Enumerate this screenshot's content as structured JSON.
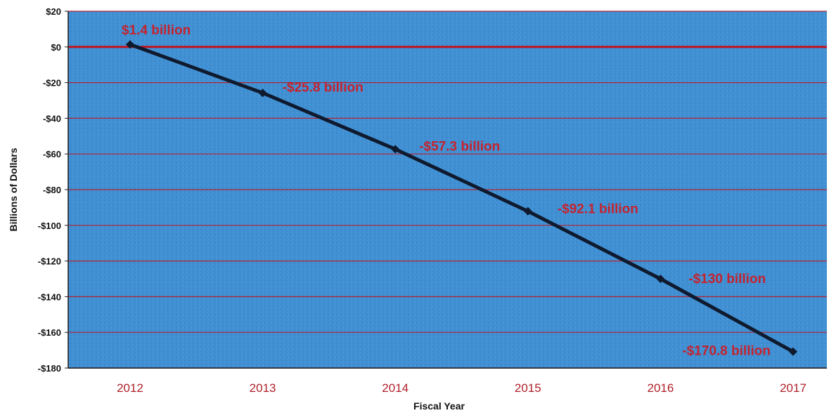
{
  "chart_data": {
    "type": "line",
    "title": "",
    "xlabel": "Fiscal Year",
    "ylabel": "Billions of Dollars",
    "x": [
      "2012",
      "2013",
      "2014",
      "2015",
      "2016",
      "2017"
    ],
    "series": [
      {
        "values": [
          1.4,
          -25.8,
          -57.3,
          -92.1,
          -130,
          -170.8
        ],
        "labels": [
          "$1.4 billion",
          "-$25.8 billion",
          "-$57.3 billion",
          "-$92.1 billion",
          "-$130 billion",
          "-$170.8 billion"
        ]
      }
    ],
    "ylim": [
      -180,
      20
    ],
    "yticks": [
      20,
      0,
      -20,
      -40,
      -60,
      -80,
      -100,
      -120,
      -140,
      -160,
      -180
    ],
    "ytick_labels": [
      "$20",
      "$0",
      "-$20",
      "-$40",
      "-$60",
      "-$80",
      "-$100",
      "-$120",
      "-$140",
      "-$160",
      "-$180"
    ],
    "grid": true,
    "legend": "none",
    "colors": {
      "plot_background": "#3f8fd2",
      "gridline": "#b22234",
      "zero_line": "#c1121f",
      "line": "#0f1a2e",
      "data_label": "#c4232e",
      "x_tick_label": "#b0202a",
      "axis_text": "#111111"
    }
  }
}
